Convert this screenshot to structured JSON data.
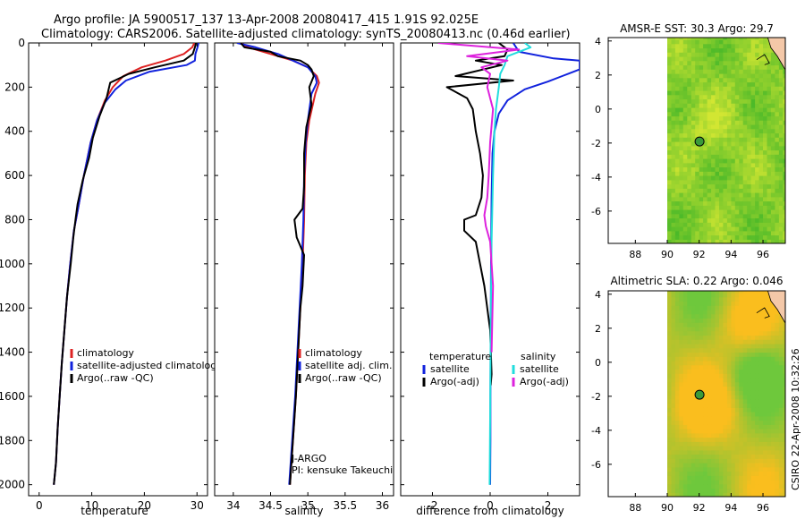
{
  "header": {
    "line1": "Argo profile: JA 5900517_137 13-Apr-2008 20080417_415 1.91S 92.025E",
    "line2": "Climatology: CARS2006. Satellite-adjusted climatology: synTS_20080413.nc (0.46d earlier)"
  },
  "side_text": "CSIRO 22-Apr-2008 10:32:26",
  "colors": {
    "climatology": "#dd2222",
    "satellite": "#1122dd",
    "argo": "#000000",
    "salinity_satellite": "#22dddd",
    "salinity_argo": "#dd22dd",
    "sst_field": "#55cc33",
    "sla_field": "#f0cc22",
    "land": "#f4c8a8",
    "float_marker": "#3a9a3a"
  },
  "chart_data": [
    {
      "id": "temperature",
      "type": "line",
      "xlabel": "temperature",
      "xlim": [
        -2,
        32
      ],
      "ylim": [
        2050,
        0
      ],
      "xticks": [
        "0",
        "10",
        "20",
        "30"
      ],
      "xtick_values": [
        0,
        10,
        20,
        30
      ],
      "yticks": [
        "0",
        "200",
        "400",
        "600",
        "800",
        "1000",
        "1200",
        "1400",
        "1600",
        "1800",
        "2000"
      ],
      "ytick_values": [
        0,
        200,
        400,
        600,
        800,
        1000,
        1200,
        1400,
        1600,
        1800,
        2000
      ],
      "legend": [
        "climatology",
        "satellite-adjusted climatology",
        "Argo(..raw -QC)"
      ],
      "series": [
        {
          "name": "climatology",
          "color": "#dd2222",
          "x": [
            29.5,
            29.1,
            27.5,
            24.0,
            19.5,
            16.0,
            14.0,
            12.5,
            11.0,
            9.8,
            8.5,
            7.4,
            6.6,
            5.9,
            5.3,
            4.8,
            4.3,
            3.9,
            3.5,
            3.2,
            2.8
          ],
          "y": [
            0,
            20,
            50,
            80,
            110,
            150,
            200,
            260,
            350,
            450,
            600,
            750,
            850,
            1000,
            1150,
            1300,
            1450,
            1600,
            1750,
            1900,
            2000
          ]
        },
        {
          "name": "satellite-adjusted climatology",
          "color": "#1122dd",
          "x": [
            30.3,
            30.1,
            29.7,
            29.6,
            28.0,
            21.0,
            16.5,
            14.5,
            12.5,
            11.0,
            9.8,
            8.5,
            7.4,
            6.6,
            5.9,
            5.3,
            4.8,
            4.3,
            3.9,
            3.5,
            3.2,
            2.8
          ],
          "y": [
            0,
            20,
            50,
            80,
            100,
            130,
            170,
            210,
            270,
            350,
            450,
            600,
            750,
            850,
            1000,
            1150,
            1300,
            1450,
            1600,
            1750,
            1900,
            2000
          ]
        },
        {
          "name": "Argo(..raw -QC)",
          "color": "#000000",
          "x": [
            29.8,
            29.6,
            29.2,
            27.5,
            22.0,
            17.0,
            13.5,
            12.8,
            11.5,
            10.2,
            9.5,
            8.3,
            7.3,
            6.9,
            6.5,
            6.0,
            5.3,
            4.8,
            4.3,
            3.9,
            3.5,
            3.2,
            2.8
          ],
          "y": [
            0,
            20,
            50,
            80,
            110,
            140,
            180,
            250,
            330,
            430,
            520,
            620,
            730,
            800,
            880,
            1000,
            1150,
            1300,
            1450,
            1600,
            1750,
            1900,
            2000
          ]
        }
      ]
    },
    {
      "id": "salinity",
      "type": "line",
      "xlabel": "salinity",
      "xlim": [
        33.75,
        36.15
      ],
      "ylim": [
        2050,
        0
      ],
      "xticks": [
        "34",
        "34.5",
        "35",
        "35.5",
        "36"
      ],
      "xtick_values": [
        34,
        34.5,
        35,
        35.5,
        36
      ],
      "legend": [
        "climatology",
        "satellite adj. clim.",
        "Argo(..raw -QC)"
      ],
      "annotation": [
        "J-ARGO",
        "PI: kensuke Takeuchi"
      ],
      "series": [
        {
          "name": "climatology",
          "color": "#dd2222",
          "x": [
            34.1,
            34.2,
            34.5,
            34.8,
            35.0,
            35.12,
            35.15,
            35.1,
            35.02,
            34.98,
            34.96,
            34.95,
            34.93,
            34.9,
            34.87,
            34.84,
            34.8,
            34.78,
            34.76
          ],
          "y": [
            0,
            20,
            50,
            80,
            110,
            150,
            180,
            230,
            350,
            450,
            600,
            800,
            1000,
            1200,
            1400,
            1600,
            1800,
            1900,
            2000
          ]
        },
        {
          "name": "satellite adj. clim.",
          "color": "#1122dd",
          "x": [
            34.05,
            34.3,
            34.6,
            34.8,
            35.0,
            35.1,
            35.12,
            35.05,
            35.0,
            34.97,
            34.95,
            34.94,
            34.92,
            34.89,
            34.86,
            34.83,
            34.79,
            34.77,
            34.75
          ],
          "y": [
            0,
            20,
            50,
            80,
            110,
            150,
            180,
            230,
            350,
            450,
            600,
            800,
            1000,
            1200,
            1400,
            1600,
            1800,
            1900,
            2000
          ]
        },
        {
          "name": "Argo(..raw -QC)",
          "color": "#000000",
          "x": [
            34.1,
            34.15,
            34.5,
            34.6,
            34.9,
            35.0,
            35.05,
            35.08,
            35.02,
            35.05,
            34.98,
            34.95,
            34.95,
            34.93,
            34.82,
            34.85,
            34.95,
            34.93,
            34.9,
            34.87,
            34.84,
            34.8,
            34.78,
            34.76
          ],
          "y": [
            0,
            20,
            40,
            60,
            80,
            100,
            120,
            150,
            200,
            280,
            380,
            500,
            650,
            750,
            800,
            880,
            960,
            1100,
            1200,
            1400,
            1600,
            1800,
            1900,
            2000
          ]
        }
      ]
    },
    {
      "id": "difference",
      "type": "line",
      "xlabel": "difference from climatology",
      "xlim": [
        -3.1,
        3.1
      ],
      "ylim": [
        2050,
        0
      ],
      "xticks": [
        "-2",
        "0",
        "2"
      ],
      "xtick_values": [
        -2,
        0,
        2
      ],
      "legend_title_left": "temperature",
      "legend_title_right": "salinity",
      "legend_left": [
        "satellite",
        "Argo(-adj)"
      ],
      "legend_right": [
        "satellite",
        "Argo(-adj)"
      ],
      "series": [
        {
          "name": "temperature satellite",
          "color": "#1122dd",
          "x": [
            0.8,
            1.0,
            2.2,
            3.1,
            3.1,
            2.5,
            2.0,
            1.2,
            0.6,
            0.3,
            0.15,
            0.08,
            0.05,
            0.03,
            0.02,
            0.01,
            0.01,
            0.0
          ],
          "y": [
            0,
            40,
            70,
            80,
            120,
            150,
            175,
            210,
            260,
            320,
            400,
            500,
            700,
            1000,
            1300,
            1600,
            1800,
            2000
          ]
        },
        {
          "name": "temperature Argo(-adj)",
          "color": "#000000",
          "x": [
            0.3,
            0.6,
            0.5,
            -0.5,
            0.4,
            -1.2,
            0.8,
            -1.5,
            -0.8,
            -0.6,
            -0.5,
            -0.35,
            -0.25,
            -0.3,
            -0.5,
            -0.9,
            -0.9,
            -0.5,
            -0.2,
            0.0,
            0.05,
            0.02
          ],
          "y": [
            0,
            30,
            60,
            80,
            100,
            150,
            170,
            200,
            250,
            300,
            400,
            500,
            600,
            700,
            780,
            800,
            850,
            900,
            1100,
            1300,
            1500,
            1550
          ]
        },
        {
          "name": "salinity satellite",
          "color": "#22dddd",
          "x": [
            1.2,
            1.4,
            0.6,
            0.5,
            0.35,
            0.3,
            0.2,
            0.15,
            0.1,
            0.05,
            0.02,
            0.0,
            -0.02
          ],
          "y": [
            0,
            20,
            60,
            100,
            140,
            200,
            300,
            400,
            600,
            900,
            1300,
            1700,
            2000
          ]
        },
        {
          "name": "salinity Argo(-adj)",
          "color": "#dd22dd",
          "x": [
            -1.8,
            1.0,
            -0.8,
            0.6,
            -0.3,
            0.0,
            -0.1,
            0.1,
            0.0,
            -0.05,
            -0.1,
            -0.2,
            -0.15,
            0.0,
            0.1,
            0.05
          ],
          "y": [
            0,
            30,
            60,
            80,
            110,
            140,
            200,
            300,
            450,
            600,
            700,
            780,
            830,
            900,
            1100,
            1400
          ]
        }
      ]
    },
    {
      "id": "sst_map",
      "type": "heatmap",
      "title": "AMSR-E SST: 30.3 Argo: 29.7",
      "xlim": [
        86.3,
        97.4
      ],
      "ylim": [
        -7.9,
        4.2
      ],
      "xticks": [
        "88",
        "90",
        "92",
        "94",
        "96"
      ],
      "xtick_values": [
        88,
        90,
        92,
        94,
        96
      ],
      "yticks": [
        "4",
        "2",
        "0",
        "-2",
        "-4",
        "-6"
      ],
      "ytick_values": [
        4,
        2,
        0,
        -2,
        -4,
        -6
      ],
      "data_xmin": 90.0,
      "float_position": {
        "lon": 92.025,
        "lat": -1.91
      }
    },
    {
      "id": "sla_map",
      "type": "heatmap",
      "title": "Altimetric SLA: 0.22 Argo: 0.046",
      "xlim": [
        86.3,
        97.4
      ],
      "ylim": [
        -7.9,
        4.2
      ],
      "xticks": [
        "88",
        "90",
        "92",
        "94",
        "96"
      ],
      "xtick_values": [
        88,
        90,
        92,
        94,
        96
      ],
      "yticks": [
        "4",
        "2",
        "0",
        "-2",
        "-4",
        "-6"
      ],
      "ytick_values": [
        4,
        2,
        0,
        -2,
        -4,
        -6
      ],
      "data_xmin": 90.0,
      "float_position": {
        "lon": 92.025,
        "lat": -1.91
      }
    }
  ]
}
